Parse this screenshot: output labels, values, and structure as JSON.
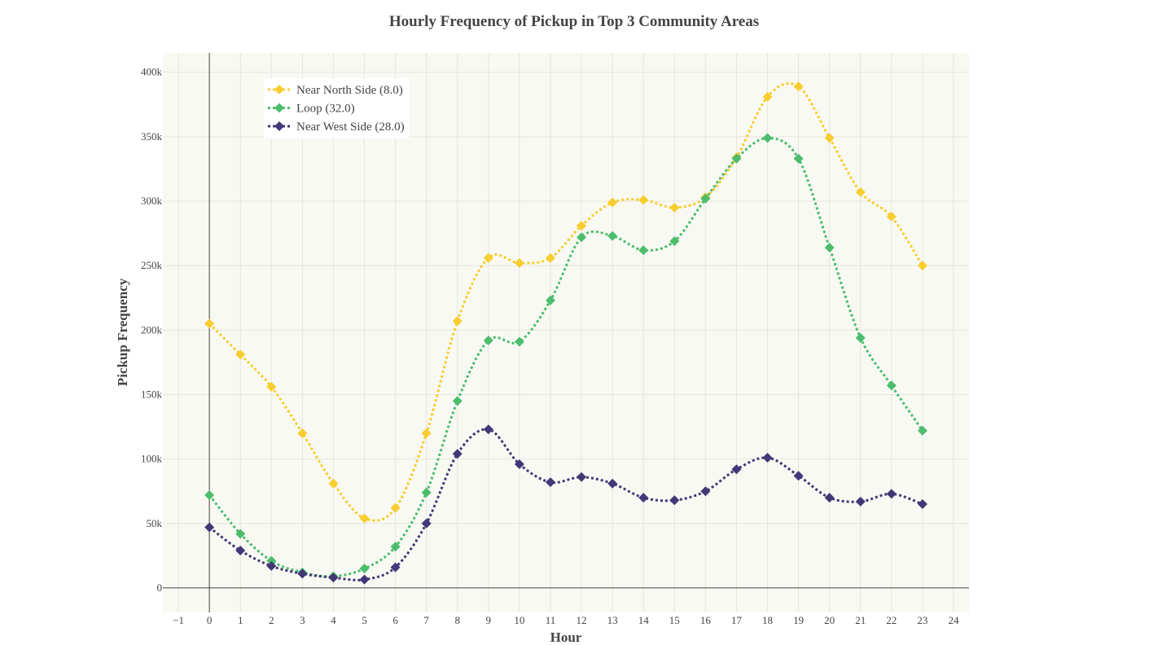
{
  "chart_data": {
    "type": "line",
    "title": "Hourly Frequency of Pickup in Top 3 Community Areas",
    "xlabel": "Hour",
    "ylabel": "Pickup Frequency",
    "xlim": [
      -1.5,
      24.5
    ],
    "ylim": [
      -19000,
      415000
    ],
    "x_ticks": [
      "−1",
      "0",
      "1",
      "2",
      "3",
      "4",
      "5",
      "6",
      "7",
      "8",
      "9",
      "10",
      "11",
      "12",
      "13",
      "14",
      "15",
      "16",
      "17",
      "18",
      "19",
      "20",
      "21",
      "22",
      "23",
      "24"
    ],
    "x_tick_values": [
      -1,
      0,
      1,
      2,
      3,
      4,
      5,
      6,
      7,
      8,
      9,
      10,
      11,
      12,
      13,
      14,
      15,
      16,
      17,
      18,
      19,
      20,
      21,
      22,
      23,
      24
    ],
    "y_ticks": [
      "0",
      "50k",
      "100k",
      "150k",
      "200k",
      "250k",
      "300k",
      "350k",
      "400k"
    ],
    "y_tick_values": [
      0,
      50000,
      100000,
      150000,
      200000,
      250000,
      300000,
      350000,
      400000
    ],
    "grid": true,
    "legend_position": "top-left",
    "plot_background": "#f9f9f3",
    "x": [
      0,
      1,
      2,
      3,
      4,
      5,
      6,
      7,
      8,
      9,
      10,
      11,
      12,
      13,
      14,
      15,
      16,
      17,
      18,
      19,
      20,
      21,
      22,
      23
    ],
    "series": [
      {
        "name": "Near North Side (8.0)",
        "color": "#f8cd2f",
        "marker": "diamond",
        "values": [
          205000,
          181000,
          156000,
          120000,
          81000,
          54000,
          62000,
          120000,
          207000,
          256000,
          252000,
          256000,
          281000,
          299000,
          301000,
          295000,
          303000,
          334000,
          381000,
          389000,
          349000,
          307000,
          288000,
          250000
        ]
      },
      {
        "name": "Loop (32.0)",
        "color": "#4cbd6d",
        "marker": "diamond",
        "values": [
          72000,
          42000,
          21000,
          12000,
          9000,
          15000,
          32000,
          74000,
          145000,
          192000,
          191000,
          223000,
          272000,
          273000,
          262000,
          269000,
          302000,
          333000,
          349000,
          333000,
          264000,
          194000,
          157000,
          122000
        ]
      },
      {
        "name": "Near West Side (28.0)",
        "color": "#433777",
        "marker": "diamond",
        "values": [
          47000,
          29000,
          17000,
          11000,
          8000,
          6500,
          16000,
          50000,
          104000,
          123000,
          96000,
          82000,
          86000,
          81000,
          70000,
          68000,
          75000,
          92000,
          101000,
          87000,
          70000,
          67000,
          73000,
          65000
        ]
      }
    ]
  }
}
